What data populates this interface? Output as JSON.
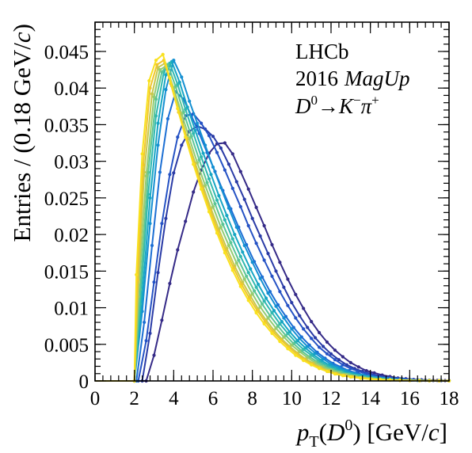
{
  "chart_data": {
    "type": "line",
    "title": "",
    "xlabel": "p_T(D^0) [GeV/c]",
    "xlabel_parts": {
      "p": "p",
      "sub": "T",
      "open": "(",
      "D": "D",
      "sup": "0",
      "close": ") [GeV/",
      "c": "c",
      "end": "]"
    },
    "ylabel": "Entries / (0.18 GeV/c)",
    "ylabel_parts": {
      "pre": "Entries / (0.18 GeV/",
      "c": "c",
      "post": ")"
    },
    "xlim": [
      0,
      18
    ],
    "ylim": [
      0,
      0.049
    ],
    "x_ticks": [
      "0",
      "2",
      "4",
      "6",
      "8",
      "10",
      "12",
      "14",
      "16",
      "18"
    ],
    "y_ticks": [
      "0",
      "0.005",
      "0.01",
      "0.015",
      "0.02",
      "0.025",
      "0.03",
      "0.035",
      "0.04",
      "0.045"
    ],
    "annotations": {
      "experiment": "LHCb",
      "year": "2016",
      "magnet": "MagUp",
      "decay": {
        "D": "D",
        "D_sup": "0",
        "arrow": "→",
        "K": "K",
        "K_sup": "−",
        "pi": "π",
        "pi_sup": "+"
      }
    },
    "colors": {
      "axis": "#000000",
      "series_palette": [
        "#352a87",
        "#2d3aa8",
        "#1f57c9",
        "#1a75d6",
        "#1590d2",
        "#17a6c4",
        "#2fb8b0",
        "#5cc595",
        "#93cc73",
        "#c6c84d",
        "#f0c62c",
        "#f9e11e"
      ]
    },
    "series": [
      {
        "color": "#352a87",
        "x": [
          2.6,
          3.0,
          3.4,
          3.8,
          4.2,
          4.6,
          5.0,
          5.4,
          5.8,
          6.2,
          6.6,
          7.0,
          7.4,
          7.8,
          8.2,
          8.6,
          9.0,
          9.4,
          9.8,
          10.2,
          10.6,
          11.0,
          11.4,
          11.8,
          12.2,
          12.6,
          13.0,
          13.4,
          13.8,
          14.2,
          14.6,
          15.0,
          15.4,
          15.8,
          16.2,
          16.6,
          17.0,
          17.4,
          17.8,
          18.0
        ],
        "y": [
          0,
          0.0035,
          0.0083,
          0.0133,
          0.0179,
          0.0218,
          0.0258,
          0.0288,
          0.0311,
          0.0324,
          0.0325,
          0.031,
          0.0286,
          0.0262,
          0.0237,
          0.0212,
          0.0186,
          0.0162,
          0.0139,
          0.0118,
          0.0099,
          0.0081,
          0.0066,
          0.0053,
          0.0042,
          0.0033,
          0.0025,
          0.0019,
          0.0014,
          0.0011,
          0.0008,
          0.0006,
          0.0004,
          0.0003,
          0.0002,
          0.00015,
          0.0001,
          8e-05,
          5e-05,
          4e-05
        ]
      },
      {
        "color": "#2a3ba6",
        "x": [
          2.4,
          2.8,
          3.2,
          3.6,
          4.0,
          4.4,
          4.8,
          5.2,
          5.6,
          6.0,
          6.4,
          6.8,
          7.2,
          7.6,
          8.0,
          8.4,
          8.8,
          9.2,
          9.6,
          10.0,
          10.4,
          10.8,
          11.2,
          11.6,
          12.0,
          12.4,
          12.8,
          13.2,
          13.6,
          14.0,
          14.4,
          14.8,
          15.2,
          15.6,
          16.0,
          16.4,
          16.8,
          17.2,
          17.6,
          18.0
        ],
        "y": [
          0,
          0.0065,
          0.0148,
          0.0222,
          0.0284,
          0.0322,
          0.0341,
          0.0348,
          0.0344,
          0.0334,
          0.0318,
          0.0296,
          0.0272,
          0.0248,
          0.0222,
          0.0198,
          0.0174,
          0.015,
          0.0128,
          0.0107,
          0.0089,
          0.0073,
          0.0059,
          0.0047,
          0.0037,
          0.0029,
          0.0022,
          0.0017,
          0.0013,
          0.001,
          0.0007,
          0.0005,
          0.0004,
          0.0003,
          0.0002,
          0.00014,
          0.0001,
          7e-05,
          5e-05,
          4e-05
        ]
      },
      {
        "color": "#2552c4",
        "x": [
          2.2,
          2.6,
          3.0,
          3.4,
          3.8,
          4.2,
          4.6,
          5.0,
          5.4,
          5.8,
          6.2,
          6.6,
          7.0,
          7.4,
          7.8,
          8.2,
          8.6,
          9.0,
          9.4,
          9.8,
          10.2,
          10.6,
          11.0,
          11.4,
          11.8,
          12.2,
          12.6,
          13.0,
          13.4,
          13.8,
          14.2,
          14.6,
          15.0,
          15.4,
          15.8,
          16.2,
          16.6,
          17.0,
          17.6,
          18.0
        ],
        "y": [
          0,
          0.0055,
          0.0135,
          0.0215,
          0.0282,
          0.0333,
          0.0362,
          0.0365,
          0.0352,
          0.0335,
          0.0312,
          0.0288,
          0.0263,
          0.0238,
          0.0212,
          0.0188,
          0.0165,
          0.0143,
          0.0122,
          0.0103,
          0.0086,
          0.0071,
          0.0058,
          0.0046,
          0.0037,
          0.0029,
          0.0022,
          0.0017,
          0.0013,
          0.001,
          0.0007,
          0.0005,
          0.0004,
          0.0003,
          0.0002,
          0.00014,
          0.0001,
          7e-05,
          5e-05,
          3e-05
        ]
      },
      {
        "color": "#1c6fd4",
        "x": [
          2.1,
          2.5,
          2.9,
          3.3,
          3.7,
          4.1,
          4.5,
          4.9,
          5.3,
          5.7,
          6.1,
          6.5,
          6.9,
          7.3,
          7.7,
          8.1,
          8.5,
          8.9,
          9.3,
          9.7,
          10.1,
          10.5,
          10.9,
          11.3,
          11.7,
          12.1,
          12.5,
          12.9,
          13.3,
          13.7,
          14.1,
          14.5,
          14.9,
          15.3,
          15.7,
          16.1,
          16.5,
          17.0,
          17.5,
          18.0
        ],
        "y": [
          0,
          0.008,
          0.0185,
          0.0285,
          0.0358,
          0.0395,
          0.0385,
          0.0362,
          0.0338,
          0.0312,
          0.0286,
          0.026,
          0.0235,
          0.021,
          0.0186,
          0.0163,
          0.0142,
          0.0122,
          0.0104,
          0.0088,
          0.0073,
          0.006,
          0.0049,
          0.0039,
          0.0031,
          0.0024,
          0.0019,
          0.0014,
          0.0011,
          0.0008,
          0.0006,
          0.00045,
          0.00033,
          0.00024,
          0.00017,
          0.00012,
          9e-05,
          6e-05,
          4e-05,
          3e-05
        ]
      },
      {
        "color": "#1590d2",
        "x": [
          2.0,
          2.4,
          2.8,
          3.2,
          3.6,
          4.0,
          4.4,
          4.8,
          5.2,
          5.6,
          6.0,
          6.4,
          6.8,
          7.2,
          7.6,
          8.0,
          8.4,
          8.8,
          9.2,
          9.6,
          10.0,
          10.4,
          10.8,
          11.2,
          11.6,
          12.0,
          12.4,
          12.8,
          13.2,
          13.6,
          14.0,
          14.4,
          14.8,
          15.2,
          15.6,
          16.0,
          16.4,
          17.0,
          17.5,
          18.0
        ],
        "y": [
          0,
          0.0095,
          0.0215,
          0.0322,
          0.0398,
          0.0438,
          0.0415,
          0.0382,
          0.0352,
          0.0322,
          0.0292,
          0.0264,
          0.0236,
          0.021,
          0.0185,
          0.0162,
          0.014,
          0.012,
          0.0102,
          0.0086,
          0.0071,
          0.0058,
          0.0047,
          0.0038,
          0.003,
          0.0023,
          0.0018,
          0.0014,
          0.001,
          0.0008,
          0.0006,
          0.00042,
          0.0003,
          0.00022,
          0.00016,
          0.00011,
          8e-05,
          5e-05,
          3e-05,
          2e-05
        ]
      },
      {
        "color": "#17a6c4",
        "x": [
          2.0,
          2.4,
          2.8,
          3.2,
          3.6,
          3.9,
          4.3,
          4.7,
          5.1,
          5.5,
          5.9,
          6.3,
          6.7,
          7.1,
          7.5,
          7.9,
          8.3,
          8.7,
          9.1,
          9.5,
          9.9,
          10.3,
          10.7,
          11.1,
          11.5,
          11.9,
          12.3,
          12.7,
          13.1,
          13.5,
          13.9,
          14.3,
          14.7,
          15.1,
          15.5,
          16.0,
          16.5,
          17.0,
          17.5,
          18.0
        ],
        "y": [
          0,
          0.0115,
          0.025,
          0.0352,
          0.0418,
          0.0436,
          0.0408,
          0.0374,
          0.0342,
          0.0311,
          0.0282,
          0.0253,
          0.0226,
          0.02,
          0.0176,
          0.0153,
          0.0132,
          0.0113,
          0.0096,
          0.0081,
          0.0067,
          0.0055,
          0.0045,
          0.0036,
          0.0028,
          0.0022,
          0.0017,
          0.0013,
          0.001,
          0.00075,
          0.00055,
          0.0004,
          0.00029,
          0.00021,
          0.00015,
          0.0001,
          7e-05,
          5e-05,
          3e-05,
          2e-05
        ]
      },
      {
        "color": "#2fb8b0",
        "x": [
          2.0,
          2.3,
          2.7,
          3.1,
          3.5,
          3.8,
          4.2,
          4.6,
          5.0,
          5.4,
          5.8,
          6.2,
          6.6,
          7.0,
          7.4,
          7.8,
          8.2,
          8.6,
          9.0,
          9.4,
          9.8,
          10.2,
          10.6,
          11.0,
          11.4,
          11.8,
          12.2,
          12.6,
          13.0,
          13.4,
          13.8,
          14.2,
          14.6,
          15.0,
          15.5,
          16.0,
          16.5,
          17.0,
          17.5,
          18.0
        ],
        "y": [
          0,
          0.0105,
          0.0255,
          0.0362,
          0.0422,
          0.0434,
          0.0405,
          0.0371,
          0.0338,
          0.0306,
          0.0276,
          0.0247,
          0.022,
          0.0194,
          0.017,
          0.0148,
          0.0128,
          0.0109,
          0.0093,
          0.0078,
          0.0065,
          0.0053,
          0.0043,
          0.0035,
          0.0027,
          0.0021,
          0.0016,
          0.0012,
          0.0009,
          0.0007,
          0.0005,
          0.00037,
          0.00027,
          0.0002,
          0.00013,
          9e-05,
          6e-05,
          4e-05,
          3e-05,
          2e-05
        ]
      },
      {
        "color": "#5cc595",
        "x": [
          2.0,
          2.3,
          2.7,
          3.1,
          3.4,
          3.7,
          4.1,
          4.5,
          4.9,
          5.3,
          5.7,
          6.1,
          6.5,
          6.9,
          7.3,
          7.7,
          8.1,
          8.5,
          8.9,
          9.3,
          9.7,
          10.1,
          10.5,
          10.9,
          11.3,
          11.7,
          12.1,
          12.5,
          12.9,
          13.3,
          13.7,
          14.1,
          14.5,
          15.0,
          15.5,
          16.0,
          16.5,
          17.0,
          17.5,
          18.0
        ],
        "y": [
          0,
          0.0125,
          0.0285,
          0.0385,
          0.0422,
          0.0432,
          0.0402,
          0.0367,
          0.0334,
          0.0302,
          0.0271,
          0.0242,
          0.0214,
          0.0189,
          0.0165,
          0.0143,
          0.0123,
          0.0105,
          0.0089,
          0.0075,
          0.0062,
          0.0051,
          0.0041,
          0.0033,
          0.0026,
          0.002,
          0.0015,
          0.0012,
          0.0009,
          0.00066,
          0.00048,
          0.00035,
          0.00026,
          0.00017,
          0.00012,
          8e-05,
          6e-05,
          4e-05,
          3e-05,
          2e-05
        ]
      },
      {
        "color": "#93cc73",
        "x": [
          2.0,
          2.2,
          2.6,
          3.0,
          3.3,
          3.6,
          4.0,
          4.4,
          4.8,
          5.2,
          5.6,
          6.0,
          6.4,
          6.8,
          7.2,
          7.6,
          8.0,
          8.4,
          8.8,
          9.2,
          9.6,
          10.0,
          10.4,
          10.8,
          11.2,
          11.6,
          12.0,
          12.4,
          12.8,
          13.2,
          13.6,
          14.0,
          14.5,
          15.0,
          15.5,
          16.0,
          16.5,
          17.0,
          17.5,
          18.0
        ],
        "y": [
          0,
          0.0115,
          0.028,
          0.0388,
          0.0425,
          0.043,
          0.04,
          0.0365,
          0.0331,
          0.0298,
          0.0267,
          0.0238,
          0.021,
          0.0185,
          0.0161,
          0.0139,
          0.0119,
          0.0101,
          0.0086,
          0.0072,
          0.006,
          0.0049,
          0.004,
          0.0032,
          0.0025,
          0.0019,
          0.0015,
          0.0011,
          0.00085,
          0.00063,
          0.00046,
          0.00034,
          0.00023,
          0.00016,
          0.00011,
          8e-05,
          5e-05,
          4e-05,
          3e-05,
          2e-05
        ]
      },
      {
        "color": "#c6c84d",
        "x": [
          2.0,
          2.2,
          2.5,
          2.9,
          3.2,
          3.55,
          3.9,
          4.3,
          4.7,
          5.1,
          5.5,
          5.9,
          6.3,
          6.7,
          7.1,
          7.5,
          7.9,
          8.3,
          8.7,
          9.1,
          9.5,
          9.9,
          10.3,
          10.7,
          11.1,
          11.5,
          11.9,
          12.3,
          12.7,
          13.1,
          13.5,
          14.0,
          14.5,
          15.0,
          15.5,
          16.0,
          16.5,
          17.0,
          17.5,
          18.0
        ],
        "y": [
          0,
          0.0135,
          0.0285,
          0.0392,
          0.0428,
          0.0434,
          0.0403,
          0.0366,
          0.0331,
          0.0297,
          0.0265,
          0.0235,
          0.0207,
          0.0181,
          0.0157,
          0.0135,
          0.0116,
          0.0098,
          0.0083,
          0.0069,
          0.0057,
          0.0047,
          0.0038,
          0.003,
          0.0024,
          0.0018,
          0.0014,
          0.001,
          0.0008,
          0.0006,
          0.00044,
          0.0003,
          0.0002,
          0.00014,
          0.0001,
          7e-05,
          5e-05,
          3e-05,
          2e-05,
          2e-05
        ]
      },
      {
        "color": "#f0c62c",
        "x": [
          2.0,
          2.15,
          2.45,
          2.8,
          3.15,
          3.5,
          3.85,
          4.25,
          4.65,
          5.05,
          5.45,
          5.85,
          6.25,
          6.65,
          7.05,
          7.45,
          7.85,
          8.25,
          8.65,
          9.05,
          9.45,
          9.85,
          10.25,
          10.65,
          11.05,
          11.45,
          11.85,
          12.25,
          12.65,
          13.05,
          13.5,
          14.0,
          14.5,
          15.0,
          15.5,
          16.0,
          16.5,
          17.0,
          17.5,
          18.0
        ],
        "y": [
          0,
          0.0138,
          0.0295,
          0.04,
          0.0432,
          0.0438,
          0.0406,
          0.0367,
          0.0331,
          0.0296,
          0.0263,
          0.0233,
          0.0204,
          0.0178,
          0.0154,
          0.0132,
          0.0113,
          0.0096,
          0.0081,
          0.0067,
          0.0056,
          0.0046,
          0.0037,
          0.0029,
          0.0023,
          0.0018,
          0.0013,
          0.001,
          0.00076,
          0.00057,
          0.0004,
          0.00027,
          0.00018,
          0.00013,
          9e-05,
          6e-05,
          4e-05,
          3e-05,
          2e-05,
          1e-05
        ]
      },
      {
        "color": "#f9e11e",
        "x": [
          2.0,
          2.1,
          2.4,
          2.75,
          3.1,
          3.45,
          3.8,
          4.2,
          4.6,
          5.0,
          5.4,
          5.8,
          6.2,
          6.6,
          7.0,
          7.4,
          7.8,
          8.2,
          8.6,
          9.0,
          9.4,
          9.8,
          10.2,
          10.6,
          11.0,
          11.4,
          11.8,
          12.2,
          12.6,
          13.0,
          13.5,
          14.0,
          14.5,
          15.0,
          15.5,
          16.0,
          16.5,
          17.0,
          17.5,
          18.0
        ],
        "y": [
          0,
          0.0145,
          0.031,
          0.041,
          0.0438,
          0.0446,
          0.0414,
          0.0372,
          0.0333,
          0.0296,
          0.0262,
          0.0231,
          0.0202,
          0.0175,
          0.0151,
          0.0129,
          0.011,
          0.0093,
          0.0078,
          0.0065,
          0.0054,
          0.0044,
          0.0035,
          0.0028,
          0.0022,
          0.0017,
          0.0013,
          0.00095,
          0.00072,
          0.00054,
          0.00037,
          0.00025,
          0.00017,
          0.00012,
          8e-05,
          5e-05,
          4e-05,
          3e-05,
          2e-05,
          1e-05
        ]
      }
    ]
  }
}
